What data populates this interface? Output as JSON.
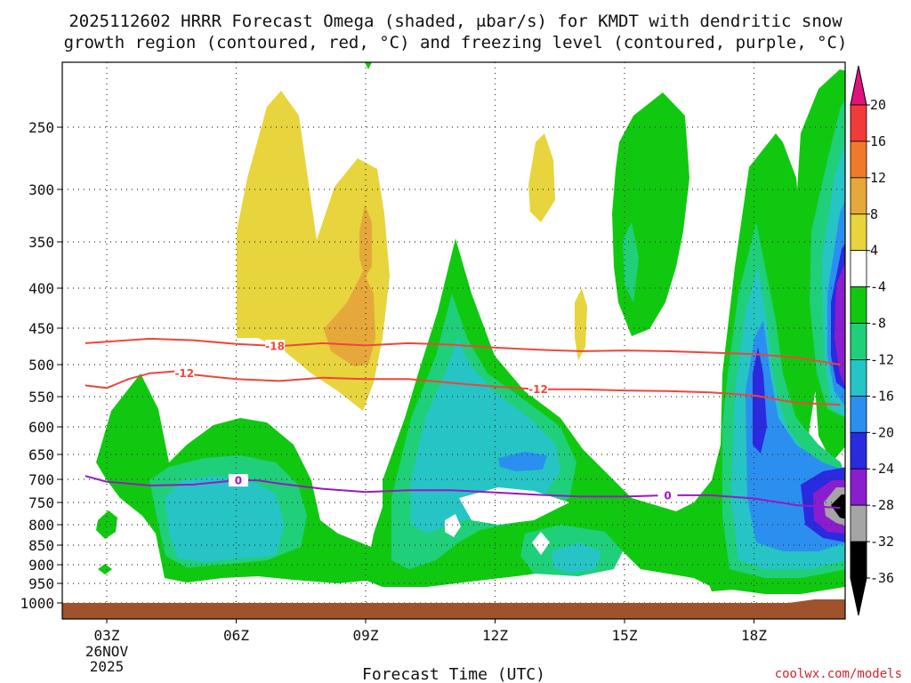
{
  "chart_data": {
    "type": "contour",
    "title_line1": "2025112602 HRRR Forecast Omega (shaded, μbar/s) for KMDT with dendritic snow",
    "title_line2": "growth region (contoured, red, °C) and freezing level (contoured, purple, °C)",
    "xlabel": "Forecast Time (UTC)",
    "credit": "coolwx.com/models",
    "x_ticks": [
      {
        "hour": 3,
        "label": "03Z"
      },
      {
        "hour": 6,
        "label": "06Z"
      },
      {
        "hour": 9,
        "label": "09Z"
      },
      {
        "hour": 12,
        "label": "12Z"
      },
      {
        "hour": 15,
        "label": "15Z"
      },
      {
        "hour": 18,
        "label": "18Z"
      }
    ],
    "date_label": [
      "26NOV",
      "2025"
    ],
    "xlim_hours": [
      2.5,
      20
    ],
    "y_pressure_ticks": [
      250,
      300,
      350,
      400,
      450,
      500,
      550,
      600,
      650,
      700,
      750,
      800,
      850,
      900,
      950,
      1000
    ],
    "y_axis_top_hpa": 205,
    "colorbar": {
      "labels": [
        "20",
        "16",
        "12",
        "8",
        "4",
        "-4",
        "-8",
        "-12",
        "-16",
        "-20",
        "-24",
        "-28",
        "-32",
        "-36"
      ],
      "bins": [
        {
          "lo": 16,
          "hi": 20,
          "color": "#f23a3a"
        },
        {
          "lo": 12,
          "hi": 16,
          "color": "#f07a2a"
        },
        {
          "lo": 8,
          "hi": 12,
          "color": "#e6a83a"
        },
        {
          "lo": 4,
          "hi": 8,
          "color": "#e8d43c"
        },
        {
          "lo": -4,
          "hi": 4,
          "color": "#ffffff"
        },
        {
          "lo": -8,
          "hi": -4,
          "color": "#11c811"
        },
        {
          "lo": -12,
          "hi": -8,
          "color": "#20cf79"
        },
        {
          "lo": -16,
          "hi": -12,
          "color": "#26c4c4"
        },
        {
          "lo": -20,
          "hi": -16,
          "color": "#2b8ff0"
        },
        {
          "lo": -24,
          "hi": -20,
          "color": "#2a2ae0"
        },
        {
          "lo": -28,
          "hi": -24,
          "color": "#8a1ecf"
        },
        {
          "lo": -32,
          "hi": -28,
          "color": "#a5a5a5"
        }
      ],
      "top_arrow_color": "#e2127a",
      "bottom_arrow_color": "#000000"
    },
    "contours": [
      {
        "name": "-18",
        "color": "#f0453a",
        "label_hour": 6.9,
        "points": [
          [
            2.5,
            470
          ],
          [
            3.0,
            468
          ],
          [
            4.0,
            464
          ],
          [
            5.0,
            466
          ],
          [
            6.0,
            471
          ],
          [
            7.0,
            474
          ],
          [
            8.0,
            470
          ],
          [
            9.0,
            473
          ],
          [
            10.0,
            470
          ],
          [
            11.0,
            472
          ],
          [
            12.0,
            476
          ],
          [
            13.0,
            479
          ],
          [
            14.0,
            481
          ],
          [
            15.0,
            480
          ],
          [
            16.0,
            481
          ],
          [
            17.0,
            483
          ],
          [
            18.0,
            485
          ],
          [
            19.0,
            490
          ],
          [
            20.0,
            500
          ]
        ]
      },
      {
        "name": "-12",
        "color": "#f0453a",
        "label_hour": 4.8,
        "points": [
          [
            2.5,
            532
          ],
          [
            3.0,
            536
          ],
          [
            3.5,
            522
          ],
          [
            4.0,
            513
          ],
          [
            4.6,
            510
          ],
          [
            5.0,
            515
          ],
          [
            6.0,
            522
          ],
          [
            7.0,
            525
          ],
          [
            8.0,
            520
          ],
          [
            9.0,
            522
          ],
          [
            10.0,
            522
          ],
          [
            11.0,
            528
          ],
          [
            12.0,
            534
          ],
          [
            13.0,
            538
          ],
          [
            14.0,
            538
          ],
          [
            15.0,
            540
          ],
          [
            16.0,
            541
          ],
          [
            17.0,
            543
          ],
          [
            18.0,
            548
          ],
          [
            19.0,
            560
          ],
          [
            20.0,
            563
          ]
        ]
      },
      {
        "name": "0",
        "color": "#9a17c7",
        "label_hour": 6.05,
        "points": [
          [
            2.5,
            693
          ],
          [
            3.0,
            705
          ],
          [
            4.0,
            713
          ],
          [
            5.0,
            711
          ],
          [
            6.0,
            702
          ],
          [
            6.5,
            702
          ],
          [
            7.0,
            709
          ],
          [
            8.0,
            720
          ],
          [
            9.0,
            727
          ],
          [
            10.0,
            723
          ],
          [
            11.0,
            723
          ],
          [
            12.0,
            728
          ],
          [
            13.0,
            733
          ],
          [
            14.0,
            737
          ],
          [
            15.0,
            737
          ],
          [
            16.0,
            734
          ],
          [
            17.0,
            734
          ],
          [
            18.0,
            741
          ],
          [
            19.0,
            756
          ],
          [
            20.0,
            762
          ]
        ]
      }
    ],
    "contour_labels": [
      "-18",
      "-12",
      "-12",
      "0",
      "0"
    ],
    "ground_color": "#a0522d",
    "ground_pressure_hpa": 1000
  }
}
